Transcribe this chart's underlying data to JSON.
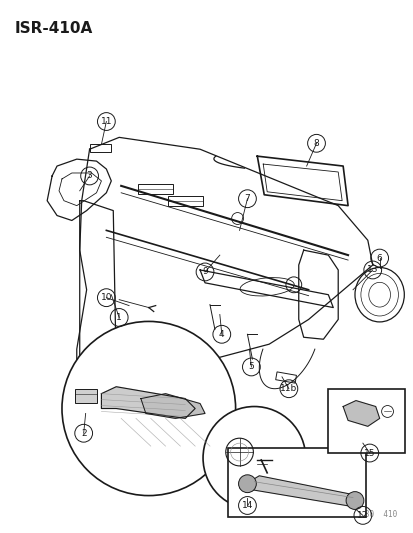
{
  "title": "ISR−410A",
  "watermark": "92V30  410",
  "bg_color": "#ffffff",
  "fig_width": 4.14,
  "fig_height": 5.33,
  "dpi": 100,
  "line_color": "#1a1a1a",
  "gray": "#888888"
}
